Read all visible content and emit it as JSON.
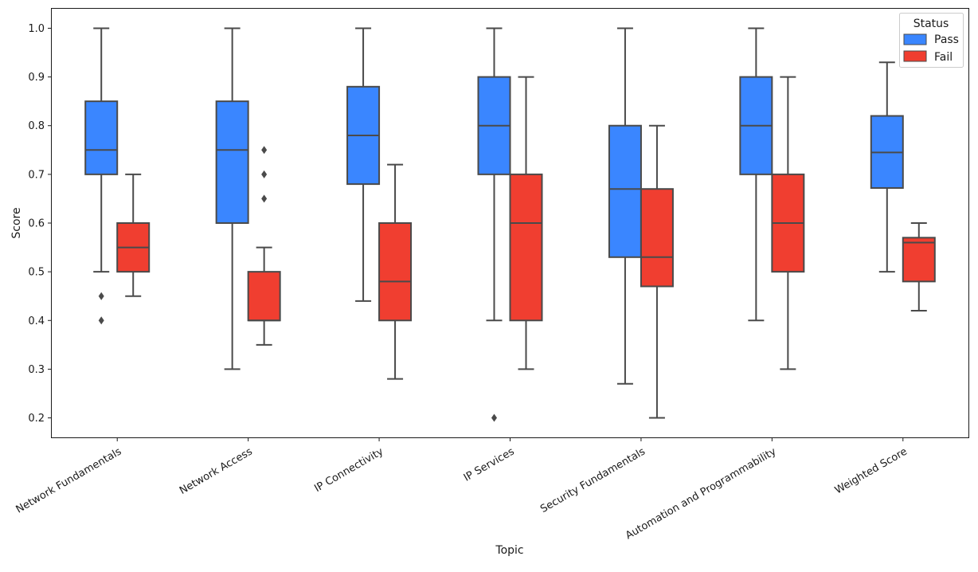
{
  "chart_data": {
    "type": "boxplot",
    "xlabel": "Topic",
    "ylabel": "Score",
    "ylim": [
      0.16,
      1.04
    ],
    "yticks": [
      "0.2",
      "0.3",
      "0.4",
      "0.5",
      "0.6",
      "0.7",
      "0.8",
      "0.9",
      "1.0"
    ],
    "categories": [
      "Network Fundamentals",
      "Network Access",
      "IP Connectivity",
      "IP Services",
      "Security Fundamentals",
      "Automation and Programmability",
      "Weighted Score"
    ],
    "legend": {
      "title": "Status",
      "position": "top-right"
    },
    "series": [
      {
        "name": "Pass",
        "color": "#3a86ff",
        "boxes": [
          {
            "whislo": 0.5,
            "q1": 0.7,
            "med": 0.75,
            "q3": 0.85,
            "whishi": 1.0,
            "fliers": [
              0.45,
              0.4
            ]
          },
          {
            "whislo": 0.3,
            "q1": 0.6,
            "med": 0.75,
            "q3": 0.85,
            "whishi": 1.0,
            "fliers": []
          },
          {
            "whislo": 0.44,
            "q1": 0.68,
            "med": 0.78,
            "q3": 0.88,
            "whishi": 1.0,
            "fliers": []
          },
          {
            "whislo": 0.4,
            "q1": 0.7,
            "med": 0.8,
            "q3": 0.9,
            "whishi": 1.0,
            "fliers": [
              0.2
            ]
          },
          {
            "whislo": 0.27,
            "q1": 0.53,
            "med": 0.67,
            "q3": 0.8,
            "whishi": 1.0,
            "fliers": []
          },
          {
            "whislo": 0.4,
            "q1": 0.7,
            "med": 0.8,
            "q3": 0.9,
            "whishi": 1.0,
            "fliers": []
          },
          {
            "whislo": 0.5,
            "q1": 0.672,
            "med": 0.745,
            "q3": 0.82,
            "whishi": 0.93,
            "fliers": []
          }
        ]
      },
      {
        "name": "Fail",
        "color": "#f03e30",
        "boxes": [
          {
            "whislo": 0.45,
            "q1": 0.5,
            "med": 0.55,
            "q3": 0.6,
            "whishi": 0.7,
            "fliers": []
          },
          {
            "whislo": 0.35,
            "q1": 0.4,
            "med": 0.4,
            "q3": 0.5,
            "whishi": 0.55,
            "fliers": [
              0.75,
              0.7,
              0.65
            ]
          },
          {
            "whislo": 0.28,
            "q1": 0.4,
            "med": 0.48,
            "q3": 0.6,
            "whishi": 0.72,
            "fliers": []
          },
          {
            "whislo": 0.3,
            "q1": 0.4,
            "med": 0.6,
            "q3": 0.7,
            "whishi": 0.9,
            "fliers": []
          },
          {
            "whislo": 0.2,
            "q1": 0.47,
            "med": 0.53,
            "q3": 0.67,
            "whishi": 0.8,
            "fliers": []
          },
          {
            "whislo": 0.3,
            "q1": 0.5,
            "med": 0.6,
            "q3": 0.7,
            "whishi": 0.9,
            "fliers": []
          },
          {
            "whislo": 0.42,
            "q1": 0.48,
            "med": 0.56,
            "q3": 0.57,
            "whishi": 0.6,
            "fliers": []
          }
        ]
      }
    ]
  }
}
